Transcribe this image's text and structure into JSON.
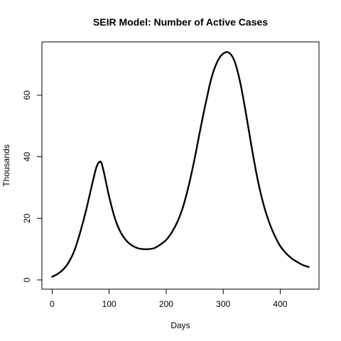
{
  "chart_data": {
    "type": "line",
    "title": "SEIR Model: Number of Active Cases",
    "xlabel": "Days",
    "ylabel": "Thousands",
    "xlim": [
      -18,
      468
    ],
    "ylim": [
      -3,
      77.3
    ],
    "xticks": [
      0,
      100,
      200,
      300,
      400
    ],
    "yticks": [
      0,
      20,
      40,
      60
    ],
    "grid": false,
    "line_color": "#000000",
    "series": [
      {
        "x": [
          0,
          10,
          20,
          30,
          40,
          50,
          60,
          70,
          78,
          85,
          90,
          100,
          110,
          120,
          130,
          140,
          150,
          160,
          170,
          180,
          190,
          200,
          210,
          220,
          230,
          240,
          250,
          260,
          270,
          280,
          290,
          300,
          310,
          320,
          330,
          340,
          350,
          360,
          370,
          380,
          390,
          400,
          410,
          420,
          430,
          440,
          450
        ],
        "values": [
          1.0,
          2.0,
          3.5,
          6.0,
          10.0,
          16.0,
          23.0,
          31.0,
          36.8,
          38.4,
          35.5,
          27.0,
          20.0,
          15.5,
          12.8,
          11.2,
          10.3,
          10.0,
          10.0,
          10.4,
          11.5,
          13.0,
          15.5,
          19.0,
          24.0,
          31.0,
          39.5,
          49.0,
          58.0,
          66.0,
          71.0,
          73.5,
          73.8,
          71.0,
          64.0,
          54.0,
          43.0,
          33.0,
          25.0,
          19.0,
          14.5,
          11.0,
          8.7,
          7.0,
          5.8,
          4.8,
          4.2
        ]
      }
    ]
  }
}
